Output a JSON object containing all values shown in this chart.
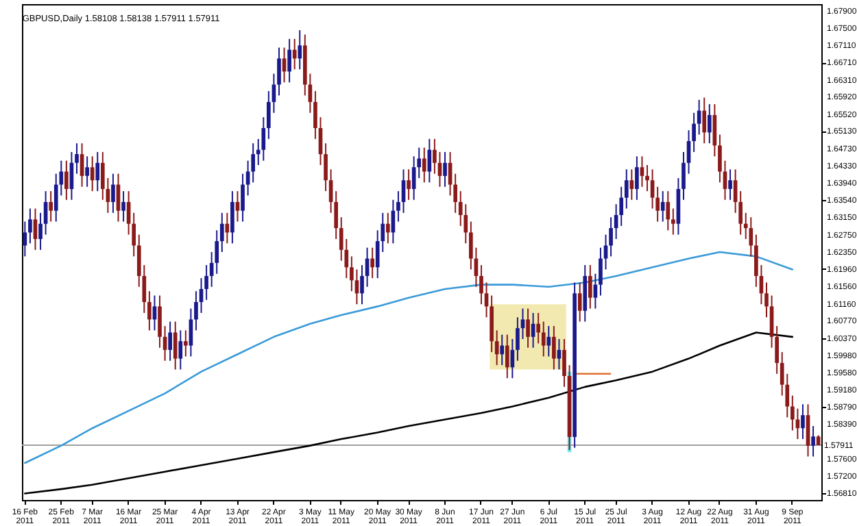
{
  "chart_data": {
    "type": "candlestick",
    "title": "GBPUSD,Daily  1.58108 1.58138 1.57911 1.57911",
    "categories": [
      "16 Feb 2011",
      null,
      null,
      null,
      null,
      null,
      null,
      "25 Feb 2011",
      null,
      null,
      null,
      null,
      null,
      "7 Mar 2011",
      null,
      null,
      null,
      null,
      null,
      null,
      "16 Mar 2011",
      null,
      null,
      null,
      null,
      null,
      null,
      "25 Mar 2011",
      null,
      null,
      null,
      null,
      null,
      null,
      "4 Apr 2011",
      null,
      null,
      null,
      null,
      null,
      null,
      "13 Apr 2011",
      null,
      null,
      null,
      null,
      null,
      null,
      "22 Apr 2011",
      null,
      null,
      null,
      null,
      null,
      null,
      "3 May 2011",
      null,
      null,
      null,
      null,
      null,
      "11 May 2011",
      null,
      null,
      null,
      null,
      null,
      null,
      "20 May 2011",
      null,
      null,
      null,
      null,
      null,
      "30 May 2011",
      null,
      null,
      null,
      null,
      null,
      null,
      "8 Jun 2011",
      null,
      null,
      null,
      null,
      null,
      null,
      "17 Jun 2011",
      null,
      null,
      null,
      null,
      null,
      "27 Jun 2011",
      null,
      null,
      null,
      null,
      null,
      null,
      "6 Jul 2011",
      null,
      null,
      null,
      null,
      null,
      null,
      "15 Jul 2011",
      null,
      null,
      null,
      null,
      null,
      "25 Jul 2011",
      null,
      null,
      null,
      null,
      null,
      null,
      "3 Aug 2011",
      null,
      null,
      null,
      null,
      null,
      null,
      "12 Aug 2011",
      null,
      null,
      null,
      null,
      null,
      "22 Aug 2011",
      null,
      null,
      null,
      null,
      null,
      null,
      "31 Aug 2011",
      null,
      null,
      null,
      null,
      null,
      null,
      "9 Sep 2011",
      null,
      null,
      null,
      null,
      null
    ],
    "ohlc": [
      [
        1.625,
        1.6305,
        1.6225,
        1.628
      ],
      [
        1.628,
        1.6335,
        1.6255,
        1.631
      ],
      [
        1.631,
        1.6335,
        1.624,
        1.6265
      ],
      [
        1.6265,
        1.6325,
        1.624,
        1.63
      ],
      [
        1.63,
        1.6375,
        1.6275,
        1.635
      ],
      [
        1.635,
        1.6375,
        1.6305,
        1.633
      ],
      [
        1.633,
        1.6415,
        1.6305,
        1.639
      ],
      [
        1.639,
        1.6445,
        1.6365,
        1.642
      ],
      [
        1.642,
        1.6445,
        1.6355,
        1.638
      ],
      [
        1.638,
        1.6465,
        1.6355,
        1.644
      ],
      [
        1.644,
        1.6485,
        1.6415,
        1.646
      ],
      [
        1.646,
        1.6485,
        1.6385,
        1.641
      ],
      [
        1.641,
        1.6455,
        1.6385,
        1.643
      ],
      [
        1.643,
        1.6455,
        1.6375,
        1.64
      ],
      [
        1.64,
        1.6465,
        1.6375,
        1.644
      ],
      [
        1.644,
        1.6465,
        1.6355,
        1.638
      ],
      [
        1.638,
        1.6405,
        1.6325,
        1.635
      ],
      [
        1.635,
        1.6415,
        1.6325,
        1.639
      ],
      [
        1.639,
        1.6415,
        1.6305,
        1.633
      ],
      [
        1.633,
        1.6375,
        1.6305,
        1.635
      ],
      [
        1.635,
        1.6375,
        1.6275,
        1.63
      ],
      [
        1.63,
        1.6325,
        1.6225,
        1.625
      ],
      [
        1.625,
        1.6275,
        1.6155,
        1.618
      ],
      [
        1.618,
        1.6205,
        1.6095,
        1.612
      ],
      [
        1.612,
        1.6145,
        1.6055,
        1.608
      ],
      [
        1.608,
        1.6135,
        1.6055,
        1.611
      ],
      [
        1.611,
        1.6135,
        1.6015,
        1.604
      ],
      [
        1.604,
        1.6065,
        1.5985,
        1.601
      ],
      [
        1.601,
        1.6075,
        1.5985,
        1.605
      ],
      [
        1.605,
        1.6075,
        1.5965,
        1.599
      ],
      [
        1.599,
        1.6055,
        1.5965,
        1.603
      ],
      [
        1.603,
        1.6055,
        1.5995,
        1.602
      ],
      [
        1.602,
        1.6105,
        1.5995,
        1.608
      ],
      [
        1.608,
        1.6145,
        1.6055,
        1.612
      ],
      [
        1.612,
        1.6175,
        1.6095,
        1.615
      ],
      [
        1.615,
        1.6205,
        1.6125,
        1.618
      ],
      [
        1.618,
        1.6235,
        1.6155,
        1.621
      ],
      [
        1.621,
        1.6285,
        1.6185,
        1.626
      ],
      [
        1.626,
        1.6325,
        1.6235,
        1.63
      ],
      [
        1.63,
        1.6325,
        1.6255,
        1.628
      ],
      [
        1.628,
        1.6375,
        1.6255,
        1.635
      ],
      [
        1.635,
        1.6375,
        1.6305,
        1.633
      ],
      [
        1.633,
        1.6415,
        1.6305,
        1.639
      ],
      [
        1.639,
        1.6445,
        1.6365,
        1.642
      ],
      [
        1.642,
        1.6485,
        1.6395,
        1.646
      ],
      [
        1.646,
        1.6495,
        1.6435,
        1.647
      ],
      [
        1.647,
        1.6545,
        1.6445,
        1.652
      ],
      [
        1.652,
        1.6605,
        1.6495,
        1.658
      ],
      [
        1.658,
        1.6645,
        1.6555,
        1.662
      ],
      [
        1.662,
        1.6705,
        1.6595,
        1.668
      ],
      [
        1.668,
        1.6705,
        1.6625,
        1.665
      ],
      [
        1.665,
        1.6725,
        1.6625,
        1.67
      ],
      [
        1.67,
        1.6725,
        1.6655,
        1.668
      ],
      [
        1.668,
        1.6745,
        1.6655,
        1.671
      ],
      [
        1.671,
        1.6735,
        1.6595,
        1.662
      ],
      [
        1.662,
        1.6645,
        1.6555,
        1.658
      ],
      [
        1.658,
        1.6605,
        1.6495,
        1.652
      ],
      [
        1.652,
        1.6545,
        1.6435,
        1.646
      ],
      [
        1.646,
        1.6485,
        1.6375,
        1.64
      ],
      [
        1.64,
        1.6425,
        1.6325,
        1.635
      ],
      [
        1.635,
        1.6375,
        1.6265,
        1.629
      ],
      [
        1.629,
        1.6315,
        1.6215,
        1.624
      ],
      [
        1.624,
        1.6265,
        1.6175,
        1.62
      ],
      [
        1.62,
        1.6225,
        1.6145,
        1.617
      ],
      [
        1.617,
        1.6195,
        1.6115,
        1.614
      ],
      [
        1.614,
        1.6205,
        1.6115,
        1.618
      ],
      [
        1.618,
        1.6245,
        1.6155,
        1.622
      ],
      [
        1.622,
        1.6245,
        1.6175,
        1.62
      ],
      [
        1.62,
        1.6285,
        1.6175,
        1.626
      ],
      [
        1.626,
        1.6325,
        1.6235,
        1.63
      ],
      [
        1.63,
        1.6325,
        1.6255,
        1.628
      ],
      [
        1.628,
        1.6355,
        1.6255,
        1.633
      ],
      [
        1.633,
        1.6375,
        1.6305,
        1.635
      ],
      [
        1.635,
        1.6425,
        1.6325,
        1.64
      ],
      [
        1.64,
        1.6425,
        1.6355,
        1.638
      ],
      [
        1.638,
        1.6455,
        1.6355,
        1.643
      ],
      [
        1.643,
        1.6475,
        1.6405,
        1.645
      ],
      [
        1.645,
        1.6475,
        1.6395,
        1.642
      ],
      [
        1.642,
        1.6495,
        1.6395,
        1.647
      ],
      [
        1.647,
        1.6495,
        1.6415,
        1.644
      ],
      [
        1.644,
        1.6465,
        1.6385,
        1.641
      ],
      [
        1.641,
        1.6465,
        1.6385,
        1.644
      ],
      [
        1.644,
        1.6465,
        1.6365,
        1.639
      ],
      [
        1.639,
        1.6415,
        1.6325,
        1.635
      ],
      [
        1.635,
        1.6375,
        1.6295,
        1.632
      ],
      [
        1.632,
        1.6345,
        1.6255,
        1.628
      ],
      [
        1.628,
        1.6305,
        1.6195,
        1.622
      ],
      [
        1.622,
        1.6245,
        1.6155,
        1.618
      ],
      [
        1.618,
        1.6205,
        1.6115,
        1.614
      ],
      [
        1.614,
        1.6165,
        1.6085,
        1.611
      ],
      [
        1.611,
        1.6135,
        1.6005,
        1.603
      ],
      [
        1.603,
        1.6055,
        1.5975,
        1.6
      ],
      [
        1.6,
        1.6045,
        1.5975,
        1.602
      ],
      [
        1.602,
        1.6045,
        1.5945,
        1.597
      ],
      [
        1.597,
        1.6035,
        1.5945,
        1.601
      ],
      [
        1.601,
        1.6085,
        1.5985,
        1.606
      ],
      [
        1.606,
        1.6105,
        1.6035,
        1.608
      ],
      [
        1.608,
        1.6105,
        1.6015,
        1.604
      ],
      [
        1.604,
        1.6095,
        1.6015,
        1.607
      ],
      [
        1.607,
        1.6095,
        1.6025,
        1.605
      ],
      [
        1.605,
        1.6075,
        1.5995,
        1.602
      ],
      [
        1.602,
        1.6065,
        1.5995,
        1.604
      ],
      [
        1.604,
        1.6065,
        1.5965,
        1.599
      ],
      [
        1.599,
        1.6035,
        1.5965,
        1.601
      ],
      [
        1.601,
        1.6035,
        1.5925,
        1.595
      ],
      [
        1.595,
        1.5975,
        1.578,
        1.581
      ],
      [
        1.581,
        1.6165,
        1.5785,
        1.614
      ],
      [
        1.614,
        1.6165,
        1.6075,
        1.61
      ],
      [
        1.61,
        1.6205,
        1.6075,
        1.618
      ],
      [
        1.618,
        1.6205,
        1.6105,
        1.613
      ],
      [
        1.613,
        1.6185,
        1.6105,
        1.616
      ],
      [
        1.616,
        1.6245,
        1.6135,
        1.622
      ],
      [
        1.622,
        1.6275,
        1.6195,
        1.625
      ],
      [
        1.625,
        1.6315,
        1.6225,
        1.629
      ],
      [
        1.629,
        1.6345,
        1.6265,
        1.632
      ],
      [
        1.632,
        1.6385,
        1.6295,
        1.636
      ],
      [
        1.636,
        1.6425,
        1.6335,
        1.64
      ],
      [
        1.64,
        1.6425,
        1.6355,
        1.638
      ],
      [
        1.638,
        1.6455,
        1.6355,
        1.643
      ],
      [
        1.643,
        1.6455,
        1.6385,
        1.641
      ],
      [
        1.641,
        1.6435,
        1.6375,
        1.64
      ],
      [
        1.64,
        1.6425,
        1.6335,
        1.636
      ],
      [
        1.636,
        1.6385,
        1.6305,
        1.633
      ],
      [
        1.633,
        1.6375,
        1.6305,
        1.635
      ],
      [
        1.635,
        1.6375,
        1.6285,
        1.631
      ],
      [
        1.631,
        1.6335,
        1.6275,
        1.63
      ],
      [
        1.63,
        1.6405,
        1.6275,
        1.638
      ],
      [
        1.638,
        1.6465,
        1.6355,
        1.644
      ],
      [
        1.644,
        1.6515,
        1.6415,
        1.649
      ],
      [
        1.649,
        1.6555,
        1.6465,
        1.653
      ],
      [
        1.653,
        1.6585,
        1.6505,
        1.656
      ],
      [
        1.656,
        1.659,
        1.6485,
        1.651
      ],
      [
        1.651,
        1.6575,
        1.6485,
        1.655
      ],
      [
        1.655,
        1.6575,
        1.6455,
        1.648
      ],
      [
        1.648,
        1.6505,
        1.6395,
        1.642
      ],
      [
        1.642,
        1.6445,
        1.6355,
        1.638
      ],
      [
        1.638,
        1.6425,
        1.6355,
        1.64
      ],
      [
        1.64,
        1.6425,
        1.6325,
        1.635
      ],
      [
        1.635,
        1.6375,
        1.6275,
        1.63
      ],
      [
        1.63,
        1.6325,
        1.6265,
        1.629
      ],
      [
        1.629,
        1.6315,
        1.6225,
        1.625
      ],
      [
        1.625,
        1.6275,
        1.6155,
        1.618
      ],
      [
        1.618,
        1.6205,
        1.6115,
        1.614
      ],
      [
        1.614,
        1.6165,
        1.6085,
        1.611
      ],
      [
        1.611,
        1.6135,
        1.6015,
        1.604
      ],
      [
        1.604,
        1.6065,
        1.5955,
        1.598
      ],
      [
        1.598,
        1.6005,
        1.5905,
        1.593
      ],
      [
        1.593,
        1.5955,
        1.5855,
        1.588
      ],
      [
        1.588,
        1.5905,
        1.5825,
        1.585
      ],
      [
        1.585,
        1.5875,
        1.5805,
        1.583
      ],
      [
        1.583,
        1.5885,
        1.5805,
        1.586
      ],
      [
        1.586,
        1.5885,
        1.5765,
        1.579
      ],
      [
        1.579,
        1.5835,
        1.5765,
        1.5811
      ],
      [
        1.58108,
        1.58138,
        1.57911,
        1.57911
      ]
    ],
    "colors": [
      "#1a1a8c",
      "#1a1a8c",
      "#8b1a1a",
      "#1a1a8c",
      "#1a1a8c",
      "#8b1a1a",
      "#1a1a8c",
      "#1a1a8c",
      "#8b1a1a",
      "#1a1a8c",
      "#1a1a8c",
      "#8b1a1a",
      "#1a1a8c",
      "#8b1a1a",
      "#1a1a8c",
      "#8b1a1a",
      "#8b1a1a",
      "#1a1a8c",
      "#8b1a1a",
      "#1a1a8c",
      "#8b1a1a",
      "#8b1a1a",
      "#8b1a1a",
      "#8b1a1a",
      "#8b1a1a",
      "#1a1a8c",
      "#8b1a1a",
      "#8b1a1a",
      "#1a1a8c",
      "#8b1a1a",
      "#1a1a8c",
      "#8b1a1a",
      "#1a1a8c",
      "#1a1a8c",
      "#1a1a8c",
      "#1a1a8c",
      "#1a1a8c",
      "#1a1a8c",
      "#1a1a8c",
      "#8b1a1a",
      "#1a1a8c",
      "#8b1a1a",
      "#1a1a8c",
      "#1a1a8c",
      "#1a1a8c",
      "#1a1a8c",
      "#1a1a8c",
      "#1a1a8c",
      "#1a1a8c",
      "#1a1a8c",
      "#8b1a1a",
      "#1a1a8c",
      "#8b1a1a",
      "#1a1a8c",
      "#8b1a1a",
      "#8b1a1a",
      "#8b1a1a",
      "#8b1a1a",
      "#8b1a1a",
      "#8b1a1a",
      "#8b1a1a",
      "#8b1a1a",
      "#8b1a1a",
      "#8b1a1a",
      "#8b1a1a",
      "#1a1a8c",
      "#1a1a8c",
      "#8b1a1a",
      "#1a1a8c",
      "#1a1a8c",
      "#8b1a1a",
      "#1a1a8c",
      "#1a1a8c",
      "#1a1a8c",
      "#8b1a1a",
      "#1a1a8c",
      "#1a1a8c",
      "#8b1a1a",
      "#1a1a8c",
      "#8b1a1a",
      "#8b1a1a",
      "#1a1a8c",
      "#8b1a1a",
      "#8b1a1a",
      "#8b1a1a",
      "#8b1a1a",
      "#8b1a1a",
      "#8b1a1a",
      "#8b1a1a",
      "#8b1a1a",
      "#8b1a1a",
      "#8b1a1a",
      "#1a1a8c",
      "#8b1a1a",
      "#1a1a8c",
      "#1a1a8c",
      "#1a1a8c",
      "#8b1a1a",
      "#1a1a8c",
      "#8b1a1a",
      "#8b1a1a",
      "#1a1a8c",
      "#8b1a1a",
      "#1a1a8c",
      "#8b1a1a",
      "#8b1a1a",
      "#1a1a8c",
      "#8b1a1a",
      "#1a1a8c",
      "#8b1a1a",
      "#1a1a8c",
      "#1a1a8c",
      "#1a1a8c",
      "#1a1a8c",
      "#1a1a8c",
      "#1a1a8c",
      "#1a1a8c",
      "#8b1a1a",
      "#1a1a8c",
      "#8b1a1a",
      "#8b1a1a",
      "#8b1a1a",
      "#8b1a1a",
      "#1a1a8c",
      "#8b1a1a",
      "#8b1a1a",
      "#1a1a8c",
      "#1a1a8c",
      "#1a1a8c",
      "#1a1a8c",
      "#1a1a8c",
      "#8b1a1a",
      "#1a1a8c",
      "#8b1a1a",
      "#8b1a1a",
      "#8b1a1a",
      "#1a1a8c",
      "#8b1a1a",
      "#8b1a1a",
      "#8b1a1a",
      "#8b1a1a",
      "#8b1a1a",
      "#8b1a1a",
      "#8b1a1a",
      "#8b1a1a",
      "#8b1a1a",
      "#8b1a1a",
      "#8b1a1a",
      "#8b1a1a",
      "#8b1a1a",
      "#1a1a8c",
      "#8b1a1a",
      "#1a1a8c",
      "#8b1a1a"
    ],
    "series": [
      {
        "type": "line",
        "color": "#3a9ad9",
        "x": [
          "16 Feb 2011",
          "25 Feb 2011",
          "7 Mar 2011",
          "16 Mar 2011",
          "25 Mar 2011",
          "4 Apr 2011",
          "13 Apr 2011",
          "22 Apr 2011",
          "3 May 2011",
          "11 May 2011",
          "20 May 2011",
          "30 May 2011",
          "8 Jun 2011",
          "17 Jun 2011",
          "27 Jun 2011",
          "6 Jul 2011",
          "15 Jul 2011",
          "25 Jul 2011",
          "3 Aug 2011",
          "12 Aug 2011",
          "22 Aug 2011",
          "31 Aug 2011",
          "9 Sep 2011"
        ],
        "values": [
          1.575,
          1.579,
          1.583,
          1.587,
          1.591,
          1.596,
          1.6,
          1.604,
          1.607,
          1.609,
          1.611,
          1.613,
          1.615,
          1.616,
          1.616,
          1.6155,
          1.6165,
          1.618,
          1.62,
          1.622,
          1.6235,
          1.6225,
          1.6195
        ]
      },
      {
        "type": "line",
        "color": "#000000",
        "x": [
          "16 Feb 2011",
          "25 Feb 2011",
          "7 Mar 2011",
          "16 Mar 2011",
          "25 Mar 2011",
          "4 Apr 2011",
          "13 Apr 2011",
          "22 Apr 2011",
          "3 May 2011",
          "11 May 2011",
          "20 May 2011",
          "30 May 2011",
          "8 Jun 2011",
          "17 Jun 2011",
          "27 Jun 2011",
          "6 Jul 2011",
          "15 Jul 2011",
          "25 Jul 2011",
          "3 Aug 2011",
          "12 Aug 2011",
          "22 Aug 2011",
          "31 Aug 2011",
          "9 Sep 2011"
        ],
        "values": [
          1.568,
          1.569,
          1.57,
          1.5715,
          1.573,
          1.5745,
          1.576,
          1.5775,
          1.579,
          1.5805,
          1.582,
          1.5835,
          1.585,
          1.5865,
          1.588,
          1.59,
          1.5925,
          1.594,
          1.596,
          1.599,
          1.602,
          1.605,
          1.604
        ]
      }
    ],
    "ref_lines": [
      {
        "axis": "y",
        "value": 1.57911,
        "label": "1.57911",
        "color": "#a0a0a0"
      }
    ],
    "ylim": [
      1.5665,
      1.6805
    ],
    "yticks": [
      {
        "value": 1.679,
        "label": "1.67900"
      },
      {
        "value": 1.675,
        "label": "1.67500"
      },
      {
        "value": 1.6711,
        "label": "1.67110"
      },
      {
        "value": 1.6671,
        "label": "1.66710"
      },
      {
        "value": 1.6631,
        "label": "1.66310"
      },
      {
        "value": 1.6592,
        "label": "1.65920"
      },
      {
        "value": 1.6552,
        "label": "1.65520"
      },
      {
        "value": 1.6513,
        "label": "1.65130"
      },
      {
        "value": 1.6473,
        "label": "1.64730"
      },
      {
        "value": 1.6433,
        "label": "1.64330"
      },
      {
        "value": 1.6394,
        "label": "1.63940"
      },
      {
        "value": 1.6354,
        "label": "1.63540"
      },
      {
        "value": 1.6315,
        "label": "1.63150"
      },
      {
        "value": 1.6275,
        "label": "1.62750"
      },
      {
        "value": 1.6235,
        "label": "1.62350"
      },
      {
        "value": 1.6196,
        "label": "1.61960"
      },
      {
        "value": 1.6156,
        "label": "1.61560"
      },
      {
        "value": 1.6116,
        "label": "1.61160"
      },
      {
        "value": 1.6077,
        "label": "1.60770"
      },
      {
        "value": 1.6037,
        "label": "1.60370"
      },
      {
        "value": 1.5998,
        "label": "1.59980"
      },
      {
        "value": 1.5958,
        "label": "1.59580"
      },
      {
        "value": 1.5918,
        "label": "1.59180"
      },
      {
        "value": 1.5879,
        "label": "1.58790"
      },
      {
        "value": 1.5839,
        "label": "1.58390"
      },
      {
        "value": 1.576,
        "label": "1.57600"
      },
      {
        "value": 1.572,
        "label": "1.57200"
      },
      {
        "value": 1.5681,
        "label": "1.56810"
      }
    ]
  }
}
